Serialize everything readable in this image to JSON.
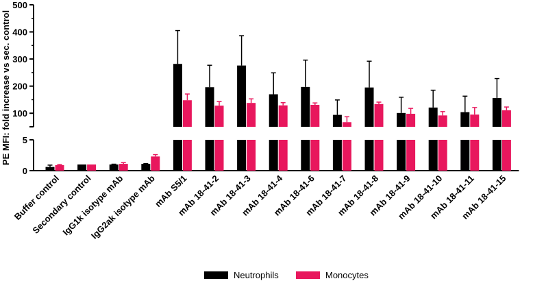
{
  "colors": {
    "neutrophils": "#000000",
    "monocytes": "#e8175d",
    "axis": "#000000"
  },
  "chart_data": {
    "type": "bar",
    "title": "",
    "xlabel": "",
    "ylabel": "PE MFI: fold increase vs sec. control",
    "broken_axis": {
      "lower_segment": {
        "ylim": [
          0,
          5
        ],
        "ticks": [
          "0",
          "5"
        ]
      },
      "upper_segment": {
        "ylim": [
          50,
          500
        ],
        "ticks": [
          "100",
          "200",
          "300",
          "400",
          "500"
        ]
      }
    },
    "categories": [
      "Buffer control",
      "Secondary control",
      "IgG1k isotype mAb",
      "IgG2ak isotype mAb",
      "mAb S5/1",
      "mAb 18-41-2",
      "mAb 18-41-3",
      "mAb 18-41-4",
      "mAb 18-41-6",
      "mAb 18-41-7",
      "mAb 18-41-8",
      "mAb 18-41-9",
      "mAb 18-41-10",
      "mAb 18-41-11",
      "mAb 18-41-15"
    ],
    "series": [
      {
        "name": "Neutrophils",
        "values": [
          0.6,
          1.0,
          1.0,
          1.1,
          282,
          196,
          276,
          170,
          197,
          94,
          195,
          101,
          121,
          104,
          156
        ],
        "errors": [
          0.3,
          0,
          0.05,
          0.05,
          123,
          81,
          110,
          79,
          99,
          55,
          97,
          58,
          64,
          59,
          72
        ]
      },
      {
        "name": "Monocytes",
        "values": [
          0.9,
          1.0,
          1.1,
          2.3,
          148,
          128,
          138,
          129,
          131,
          67,
          134,
          98,
          92,
          95,
          111
        ],
        "errors": [
          0.1,
          0,
          0.2,
          0.3,
          23,
          15,
          15,
          10,
          7,
          20,
          7,
          20,
          14,
          26,
          12
        ]
      }
    ],
    "legend": {
      "position": "bottom",
      "entries": [
        "Neutrophils",
        "Monocytes"
      ]
    }
  }
}
